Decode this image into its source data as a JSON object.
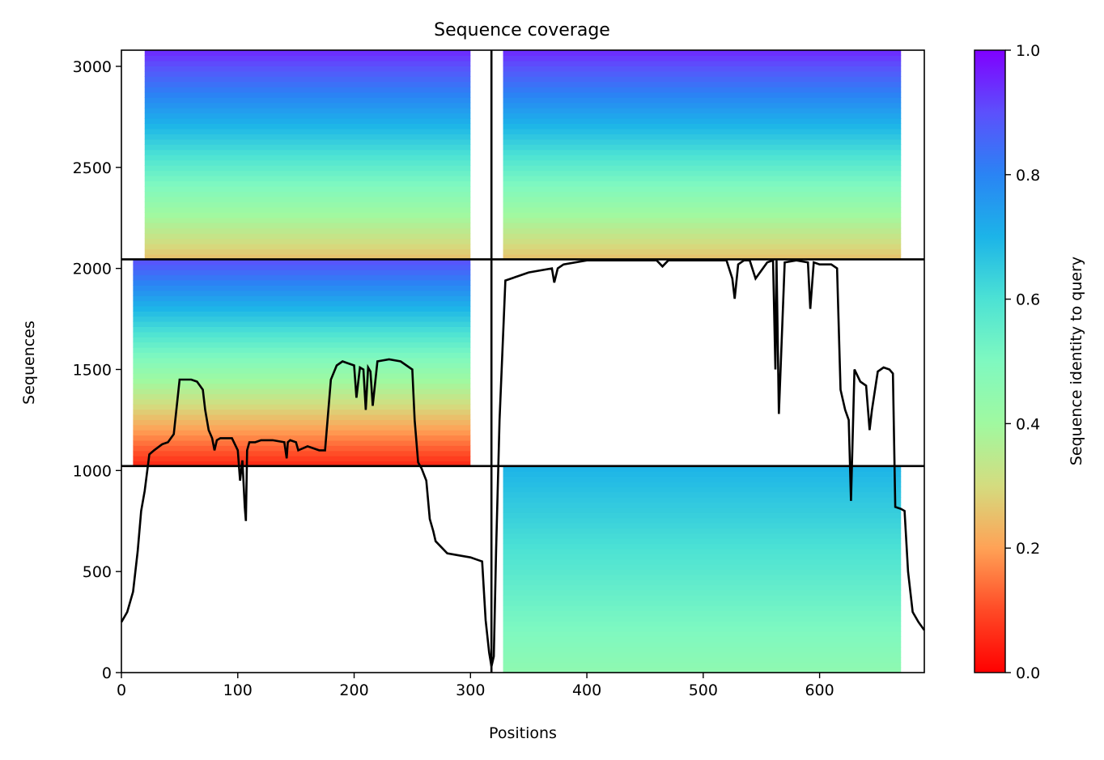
{
  "chart_data": {
    "type": "heatmap",
    "title": "Sequence coverage",
    "xlabel": "Positions",
    "ylabel": "Sequences",
    "xlim": [
      0,
      690
    ],
    "ylim": [
      0,
      3080
    ],
    "x_ticks": [
      0,
      100,
      200,
      300,
      400,
      500,
      600
    ],
    "y_ticks": [
      0,
      500,
      1000,
      1500,
      2000,
      2500,
      3000
    ],
    "colorbar": {
      "label": "Sequence identity to query",
      "range": [
        0,
        1
      ],
      "ticks": [
        "0.0",
        "0.2",
        "0.4",
        "0.6",
        "0.8",
        "1.0"
      ],
      "colormap": "rainbow_r"
    },
    "chain_boundaries": {
      "x": [
        318
      ],
      "y": [
        1022,
        2045
      ]
    },
    "blocks": [
      {
        "x": [
          0,
          318
        ],
        "y": [
          2045,
          3080
        ],
        "identity_top": 0.95,
        "identity_bottom": 0.25,
        "fill_start": 20,
        "fill_end": 300
      },
      {
        "x": [
          318,
          690
        ],
        "y": [
          2045,
          3080
        ],
        "identity_top": 0.95,
        "identity_bottom": 0.25,
        "fill_start": 328,
        "fill_end": 670
      },
      {
        "x": [
          0,
          318
        ],
        "y": [
          1022,
          2045
        ],
        "identity_top": 0.9,
        "identity_bottom": 0.05,
        "fill_start": 10,
        "fill_end": 300
      },
      {
        "x": [
          318,
          690
        ],
        "y": [
          0,
          1022
        ],
        "identity_top": 0.7,
        "identity_bottom": 0.45,
        "fill_start": 328,
        "fill_end": 670
      }
    ],
    "coverage_line": {
      "x": [
        0,
        5,
        10,
        14,
        17,
        20,
        24,
        28,
        35,
        40,
        45,
        50,
        55,
        60,
        65,
        70,
        72,
        75,
        78,
        80,
        82,
        85,
        90,
        95,
        100,
        102,
        104,
        106,
        107,
        108,
        110,
        115,
        120,
        130,
        140,
        142,
        143,
        145,
        150,
        152,
        160,
        170,
        175,
        180,
        185,
        190,
        195,
        200,
        202,
        205,
        208,
        210,
        212,
        214,
        216,
        220,
        230,
        240,
        250,
        252,
        255,
        258,
        262,
        265,
        268,
        270,
        275,
        280,
        290,
        300,
        305,
        310,
        313,
        316,
        318,
        320,
        322,
        325,
        330,
        340,
        350,
        370,
        372,
        375,
        380,
        400,
        420,
        440,
        460,
        465,
        470,
        500,
        520,
        525,
        527,
        530,
        535,
        540,
        545,
        555,
        560,
        562,
        563,
        565,
        570,
        580,
        590,
        592,
        595,
        600,
        610,
        615,
        618,
        622,
        625,
        627,
        630,
        635,
        640,
        643,
        645,
        650,
        655,
        660,
        663,
        665,
        670,
        673,
        676,
        680,
        685,
        690
      ],
      "y": [
        250,
        300,
        400,
        600,
        800,
        900,
        1080,
        1100,
        1130,
        1140,
        1180,
        1450,
        1450,
        1450,
        1440,
        1400,
        1300,
        1200,
        1160,
        1100,
        1150,
        1160,
        1160,
        1160,
        1100,
        950,
        1050,
        820,
        750,
        1100,
        1140,
        1140,
        1150,
        1150,
        1140,
        1060,
        1140,
        1150,
        1140,
        1100,
        1120,
        1100,
        1100,
        1450,
        1520,
        1540,
        1530,
        1520,
        1360,
        1510,
        1500,
        1300,
        1510,
        1490,
        1320,
        1540,
        1550,
        1540,
        1500,
        1250,
        1040,
        1010,
        950,
        760,
        700,
        650,
        620,
        590,
        580,
        570,
        560,
        550,
        260,
        100,
        30,
        80,
        600,
        1250,
        1940,
        1960,
        1980,
        2000,
        1930,
        2000,
        2020,
        2040,
        2040,
        2040,
        2040,
        2010,
        2040,
        2040,
        2040,
        1950,
        1850,
        2020,
        2040,
        2040,
        1950,
        2030,
        2040,
        1500,
        2040,
        1280,
        2030,
        2040,
        2030,
        1800,
        2030,
        2020,
        2020,
        2000,
        1400,
        1300,
        1250,
        850,
        1500,
        1440,
        1420,
        1200,
        1300,
        1490,
        1510,
        1500,
        1480,
        820,
        810,
        800,
        500,
        300,
        250,
        210
      ]
    }
  }
}
